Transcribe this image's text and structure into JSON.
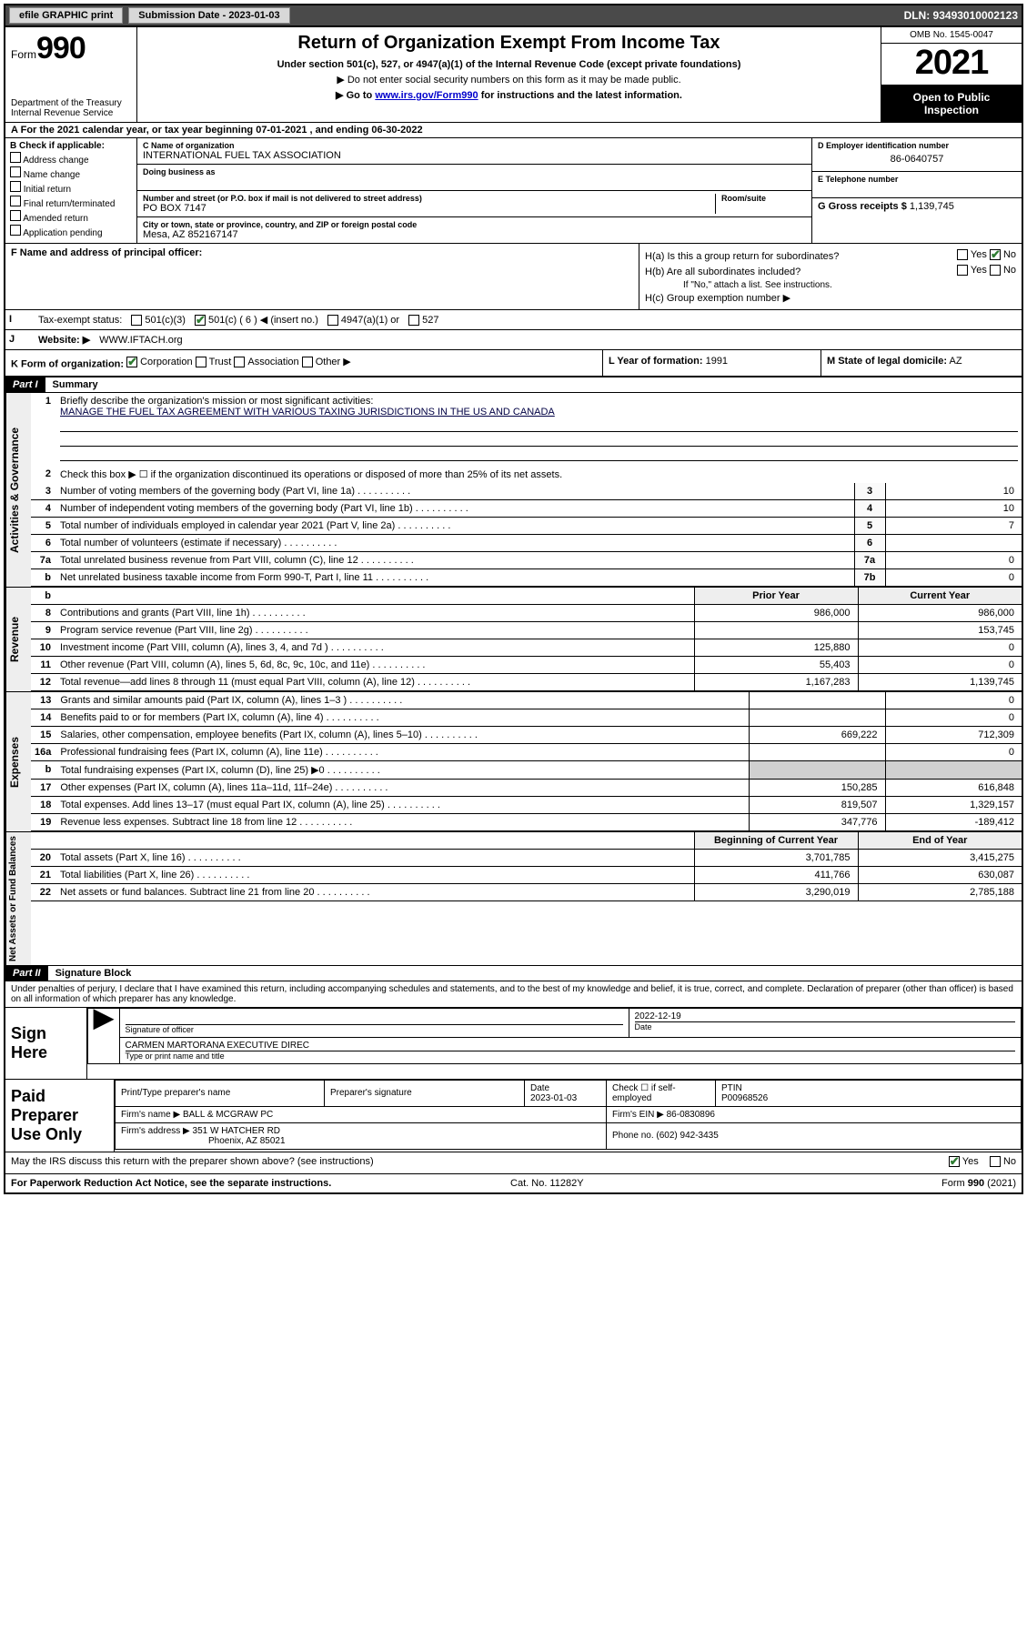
{
  "topbar": {
    "efile": "efile GRAPHIC print",
    "submission_label": "Submission Date - 2023-01-03",
    "dln": "DLN: 93493010002123"
  },
  "header": {
    "form_prefix": "Form",
    "form_number": "990",
    "title": "Return of Organization Exempt From Income Tax",
    "subtitle": "Under section 501(c), 527, or 4947(a)(1) of the Internal Revenue Code (except private foundations)",
    "note1": "▶ Do not enter social security numbers on this form as it may be made public.",
    "note2_prefix": "▶ Go to ",
    "note2_link": "www.irs.gov/Form990",
    "note2_suffix": " for instructions and the latest information.",
    "dept": "Department of the Treasury\nInternal Revenue Service",
    "omb": "OMB No. 1545-0047",
    "year": "2021",
    "inspect": "Open to Public Inspection"
  },
  "periodA": "For the 2021 calendar year, or tax year beginning 07-01-2021   , and ending 06-30-2022",
  "B": {
    "label": "B Check if applicable:",
    "items": [
      "Address change",
      "Name change",
      "Initial return",
      "Final return/terminated",
      "Amended return",
      "Application pending"
    ]
  },
  "C": {
    "name_label": "C Name of organization",
    "name": "INTERNATIONAL FUEL TAX ASSOCIATION",
    "dba_label": "Doing business as",
    "street_label": "Number and street (or P.O. box if mail is not delivered to street address)",
    "room_label": "Room/suite",
    "street": "PO BOX 7147",
    "city_label": "City or town, state or province, country, and ZIP or foreign postal code",
    "city": "Mesa, AZ  852167147"
  },
  "D": {
    "label": "D Employer identification number",
    "ein": "86-0640757",
    "E_label": "E Telephone number",
    "G_label": "G Gross receipts $",
    "G_val": "1,139,745"
  },
  "F": {
    "label": "F  Name and address of principal officer:"
  },
  "H": {
    "a": "H(a)  Is this a group return for subordinates?",
    "a_yes": "Yes",
    "a_no": "No",
    "b": "H(b)  Are all subordinates included?",
    "b_note": "If \"No,\" attach a list. See instructions.",
    "c": "H(c)  Group exemption number ▶"
  },
  "I": {
    "label": "I",
    "text": "Tax-exempt status:",
    "opts": [
      "501(c)(3)",
      "501(c) ( 6 ) ◀ (insert no.)",
      "4947(a)(1) or",
      "527"
    ]
  },
  "J": {
    "label": "J",
    "text": "Website: ▶",
    "val": "WWW.IFTACH.org"
  },
  "K": {
    "label": "K Form of organization:",
    "opts": [
      "Corporation",
      "Trust",
      "Association",
      "Other ▶"
    ]
  },
  "L": {
    "label": "L Year of formation:",
    "val": "1991"
  },
  "M": {
    "label": "M State of legal domicile:",
    "val": "AZ"
  },
  "partI": {
    "hdr": "Part I",
    "title": "Summary"
  },
  "summary": {
    "q1": "Briefly describe the organization's mission or most significant activities:",
    "mission": "MANAGE THE FUEL TAX AGREEMENT WITH VARIOUS TAXING JURISDICTIONS IN THE US AND CANADA",
    "q2": "Check this box ▶ ☐  if the organization discontinued its operations or disposed of more than 25% of its net assets.",
    "rows": [
      {
        "n": "3",
        "t": "Number of voting members of the governing body (Part VI, line 1a)",
        "num": "3",
        "v": "10"
      },
      {
        "n": "4",
        "t": "Number of independent voting members of the governing body (Part VI, line 1b)",
        "num": "4",
        "v": "10"
      },
      {
        "n": "5",
        "t": "Total number of individuals employed in calendar year 2021 (Part V, line 2a)",
        "num": "5",
        "v": "7"
      },
      {
        "n": "6",
        "t": "Total number of volunteers (estimate if necessary)",
        "num": "6",
        "v": ""
      },
      {
        "n": "7a",
        "t": "Total unrelated business revenue from Part VIII, column (C), line 12",
        "num": "7a",
        "v": "0"
      },
      {
        "n": "b",
        "t": "Net unrelated business taxable income from Form 990-T, Part I, line 11",
        "num": "7b",
        "v": "0"
      }
    ]
  },
  "revexp": {
    "col_prior": "Prior Year",
    "col_curr": "Current Year",
    "revenue_label": "Revenue",
    "expenses_label": "Expenses",
    "net_label": "Net Assets or Fund Balances",
    "rows_rev": [
      {
        "n": "8",
        "t": "Contributions and grants (Part VIII, line 1h)",
        "p": "986,000",
        "c": "986,000"
      },
      {
        "n": "9",
        "t": "Program service revenue (Part VIII, line 2g)",
        "p": "",
        "c": "153,745"
      },
      {
        "n": "10",
        "t": "Investment income (Part VIII, column (A), lines 3, 4, and 7d )",
        "p": "125,880",
        "c": "0"
      },
      {
        "n": "11",
        "t": "Other revenue (Part VIII, column (A), lines 5, 6d, 8c, 9c, 10c, and 11e)",
        "p": "55,403",
        "c": "0"
      },
      {
        "n": "12",
        "t": "Total revenue—add lines 8 through 11 (must equal Part VIII, column (A), line 12)",
        "p": "1,167,283",
        "c": "1,139,745"
      }
    ],
    "rows_exp": [
      {
        "n": "13",
        "t": "Grants and similar amounts paid (Part IX, column (A), lines 1–3 )",
        "p": "",
        "c": "0"
      },
      {
        "n": "14",
        "t": "Benefits paid to or for members (Part IX, column (A), line 4)",
        "p": "",
        "c": "0"
      },
      {
        "n": "15",
        "t": "Salaries, other compensation, employee benefits (Part IX, column (A), lines 5–10)",
        "p": "669,222",
        "c": "712,309"
      },
      {
        "n": "16a",
        "t": "Professional fundraising fees (Part IX, column (A), line 11e)",
        "p": "",
        "c": "0"
      },
      {
        "n": "b",
        "t": "Total fundraising expenses (Part IX, column (D), line 25) ▶0",
        "p": "GREY",
        "c": "GREY"
      },
      {
        "n": "17",
        "t": "Other expenses (Part IX, column (A), lines 11a–11d, 11f–24e)",
        "p": "150,285",
        "c": "616,848"
      },
      {
        "n": "18",
        "t": "Total expenses. Add lines 13–17 (must equal Part IX, column (A), line 25)",
        "p": "819,507",
        "c": "1,329,157"
      },
      {
        "n": "19",
        "t": "Revenue less expenses. Subtract line 18 from line 12",
        "p": "347,776",
        "c": "-189,412"
      }
    ],
    "col_begin": "Beginning of Current Year",
    "col_end": "End of Year",
    "rows_net": [
      {
        "n": "20",
        "t": "Total assets (Part X, line 16)",
        "p": "3,701,785",
        "c": "3,415,275"
      },
      {
        "n": "21",
        "t": "Total liabilities (Part X, line 26)",
        "p": "411,766",
        "c": "630,087"
      },
      {
        "n": "22",
        "t": "Net assets or fund balances. Subtract line 21 from line 20",
        "p": "3,290,019",
        "c": "2,785,188"
      }
    ]
  },
  "partII": {
    "hdr": "Part II",
    "title": "Signature Block"
  },
  "penalties": "Under penalties of perjury, I declare that I have examined this return, including accompanying schedules and statements, and to the best of my knowledge and belief, it is true, correct, and complete. Declaration of preparer (other than officer) is based on all information of which preparer has any knowledge.",
  "sign": {
    "here": "Sign Here",
    "sig_of": "Signature of officer",
    "date": "Date",
    "date_val": "2022-12-19",
    "name": "CARMEN MARTORANA  EXECUTIVE DIREC",
    "name_lab": "Type or print name and title"
  },
  "prep": {
    "here": "Paid Preparer Use Only",
    "c1": "Print/Type preparer's name",
    "c2": "Preparer's signature",
    "c3": "Date",
    "c3v": "2023-01-03",
    "c4": "Check ☐ if self-employed",
    "c5": "PTIN",
    "c5v": "P00968526",
    "firm_name_lab": "Firm's name    ▶",
    "firm_name": "BALL & MCGRAW PC",
    "firm_ein_lab": "Firm's EIN ▶",
    "firm_ein": "86-0830896",
    "firm_addr_lab": "Firm's address ▶",
    "firm_addr": "351 W HATCHER RD",
    "firm_addr2": "Phoenix, AZ  85021",
    "phone_lab": "Phone no.",
    "phone": "(602) 942-3435"
  },
  "discuss": {
    "q": "May the IRS discuss this return with the preparer shown above? (see instructions)",
    "yes": "Yes",
    "no": "No"
  },
  "footer": {
    "l": "For Paperwork Reduction Act Notice, see the separate instructions.",
    "m": "Cat. No. 11282Y",
    "r": "Form 990 (2021)"
  },
  "activities_label": "Activities & Governance"
}
